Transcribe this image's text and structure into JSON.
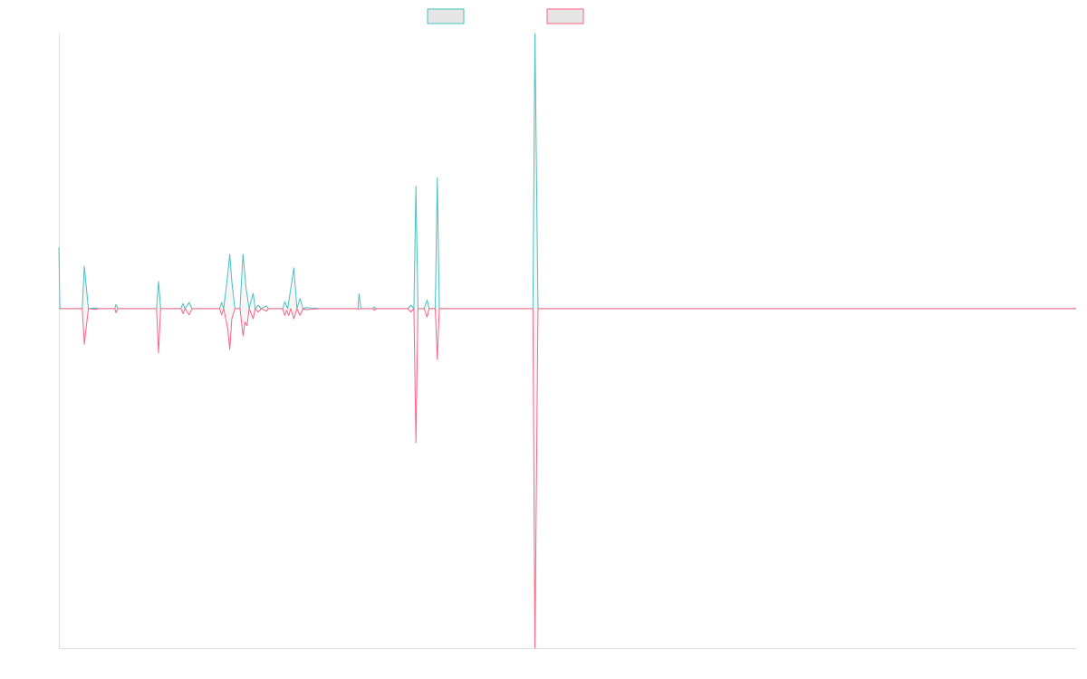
{
  "chart_data": {
    "type": "line",
    "title": "",
    "xlabel": "",
    "ylabel": "",
    "xlim": [
      0,
      1000
    ],
    "ylim": [
      -1.0,
      0.81
    ],
    "grid": false,
    "legend": {
      "placement": "top-center",
      "entries": [
        {
          "name": "",
          "color": "#4bc0c0"
        },
        {
          "name": "",
          "color": "#ff6384"
        }
      ]
    },
    "baseline": 0,
    "series": [
      {
        "name": "",
        "color": "#4bc0c0",
        "fill": "#e6e6e6",
        "points": [
          [
            0,
            0.18
          ],
          [
            1,
            0
          ],
          [
            23,
            0
          ],
          [
            25,
            0.125
          ],
          [
            29,
            0
          ],
          [
            36,
            0.002
          ],
          [
            39,
            0
          ],
          [
            55,
            0
          ],
          [
            56,
            0.012
          ],
          [
            58,
            0
          ],
          [
            96,
            0
          ],
          [
            98,
            0.08
          ],
          [
            100,
            0
          ],
          [
            120,
            0
          ],
          [
            122,
            0.015
          ],
          [
            124,
            0
          ],
          [
            128,
            0.018
          ],
          [
            131,
            0
          ],
          [
            158,
            0
          ],
          [
            160,
            0.018
          ],
          [
            162,
            0
          ],
          [
            166,
            0.1
          ],
          [
            168,
            0.16
          ],
          [
            170,
            0.08
          ],
          [
            173,
            0
          ],
          [
            178,
            0
          ],
          [
            181,
            0.16
          ],
          [
            184,
            0.06
          ],
          [
            187,
            0
          ],
          [
            191,
            0.045
          ],
          [
            193,
            0
          ],
          [
            196,
            0.01
          ],
          [
            199,
            0
          ],
          [
            204,
            0.008
          ],
          [
            206,
            0
          ],
          [
            220,
            0
          ],
          [
            222,
            0.02
          ],
          [
            225,
            0
          ],
          [
            231,
            0.12
          ],
          [
            234,
            0
          ],
          [
            237,
            0.03
          ],
          [
            240,
            0
          ],
          [
            243,
            0.003
          ],
          [
            257,
            0
          ],
          [
            294,
            0
          ],
          [
            295,
            0.043
          ],
          [
            297,
            0
          ],
          [
            309,
            0
          ],
          [
            310,
            0.005
          ],
          [
            312,
            0
          ],
          [
            343,
            0
          ],
          [
            346,
            0.01
          ],
          [
            349,
            0
          ],
          [
            351,
            0.36
          ],
          [
            353,
            0
          ],
          [
            359,
            0
          ],
          [
            362,
            0.025
          ],
          [
            364,
            0
          ],
          [
            370,
            0
          ],
          [
            372,
            0.385
          ],
          [
            374,
            0
          ],
          [
            466,
            0
          ],
          [
            468,
            0.81
          ],
          [
            471,
            0
          ],
          [
            1000,
            0
          ]
        ]
      },
      {
        "name": "",
        "color": "#ff6384",
        "fill": "#e6e6e6",
        "points": [
          [
            0,
            0
          ],
          [
            23,
            0
          ],
          [
            25,
            -0.105
          ],
          [
            29,
            0
          ],
          [
            36,
            -0.002
          ],
          [
            39,
            0
          ],
          [
            55,
            0
          ],
          [
            56,
            -0.012
          ],
          [
            58,
            0
          ],
          [
            96,
            0
          ],
          [
            98,
            -0.13
          ],
          [
            100,
            0
          ],
          [
            120,
            0
          ],
          [
            122,
            -0.015
          ],
          [
            124,
            0
          ],
          [
            128,
            -0.018
          ],
          [
            131,
            0
          ],
          [
            158,
            0
          ],
          [
            160,
            -0.018
          ],
          [
            162,
            0
          ],
          [
            166,
            -0.06
          ],
          [
            168,
            -0.12
          ],
          [
            170,
            -0.03
          ],
          [
            173,
            0
          ],
          [
            178,
            0
          ],
          [
            181,
            -0.08
          ],
          [
            183,
            -0.04
          ],
          [
            185,
            -0.05
          ],
          [
            187,
            0
          ],
          [
            191,
            -0.03
          ],
          [
            193,
            0
          ],
          [
            196,
            -0.01
          ],
          [
            199,
            0
          ],
          [
            204,
            -0.008
          ],
          [
            206,
            0
          ],
          [
            220,
            0
          ],
          [
            222,
            -0.02
          ],
          [
            224,
            -0.005
          ],
          [
            226,
            -0.02
          ],
          [
            228,
            0
          ],
          [
            231,
            -0.03
          ],
          [
            234,
            0
          ],
          [
            237,
            -0.02
          ],
          [
            240,
            0
          ],
          [
            243,
            -0.003
          ],
          [
            257,
            0
          ],
          [
            294,
            0
          ],
          [
            295,
            -0.002
          ],
          [
            297,
            0
          ],
          [
            309,
            0
          ],
          [
            310,
            -0.005
          ],
          [
            312,
            0
          ],
          [
            343,
            0
          ],
          [
            346,
            -0.01
          ],
          [
            349,
            0
          ],
          [
            351,
            -0.395
          ],
          [
            353,
            0
          ],
          [
            359,
            0
          ],
          [
            362,
            -0.025
          ],
          [
            364,
            0
          ],
          [
            370,
            0
          ],
          [
            372,
            -0.15
          ],
          [
            374,
            0
          ],
          [
            466,
            0
          ],
          [
            468,
            -1.0
          ],
          [
            471,
            0
          ],
          [
            1000,
            0
          ]
        ]
      }
    ]
  }
}
